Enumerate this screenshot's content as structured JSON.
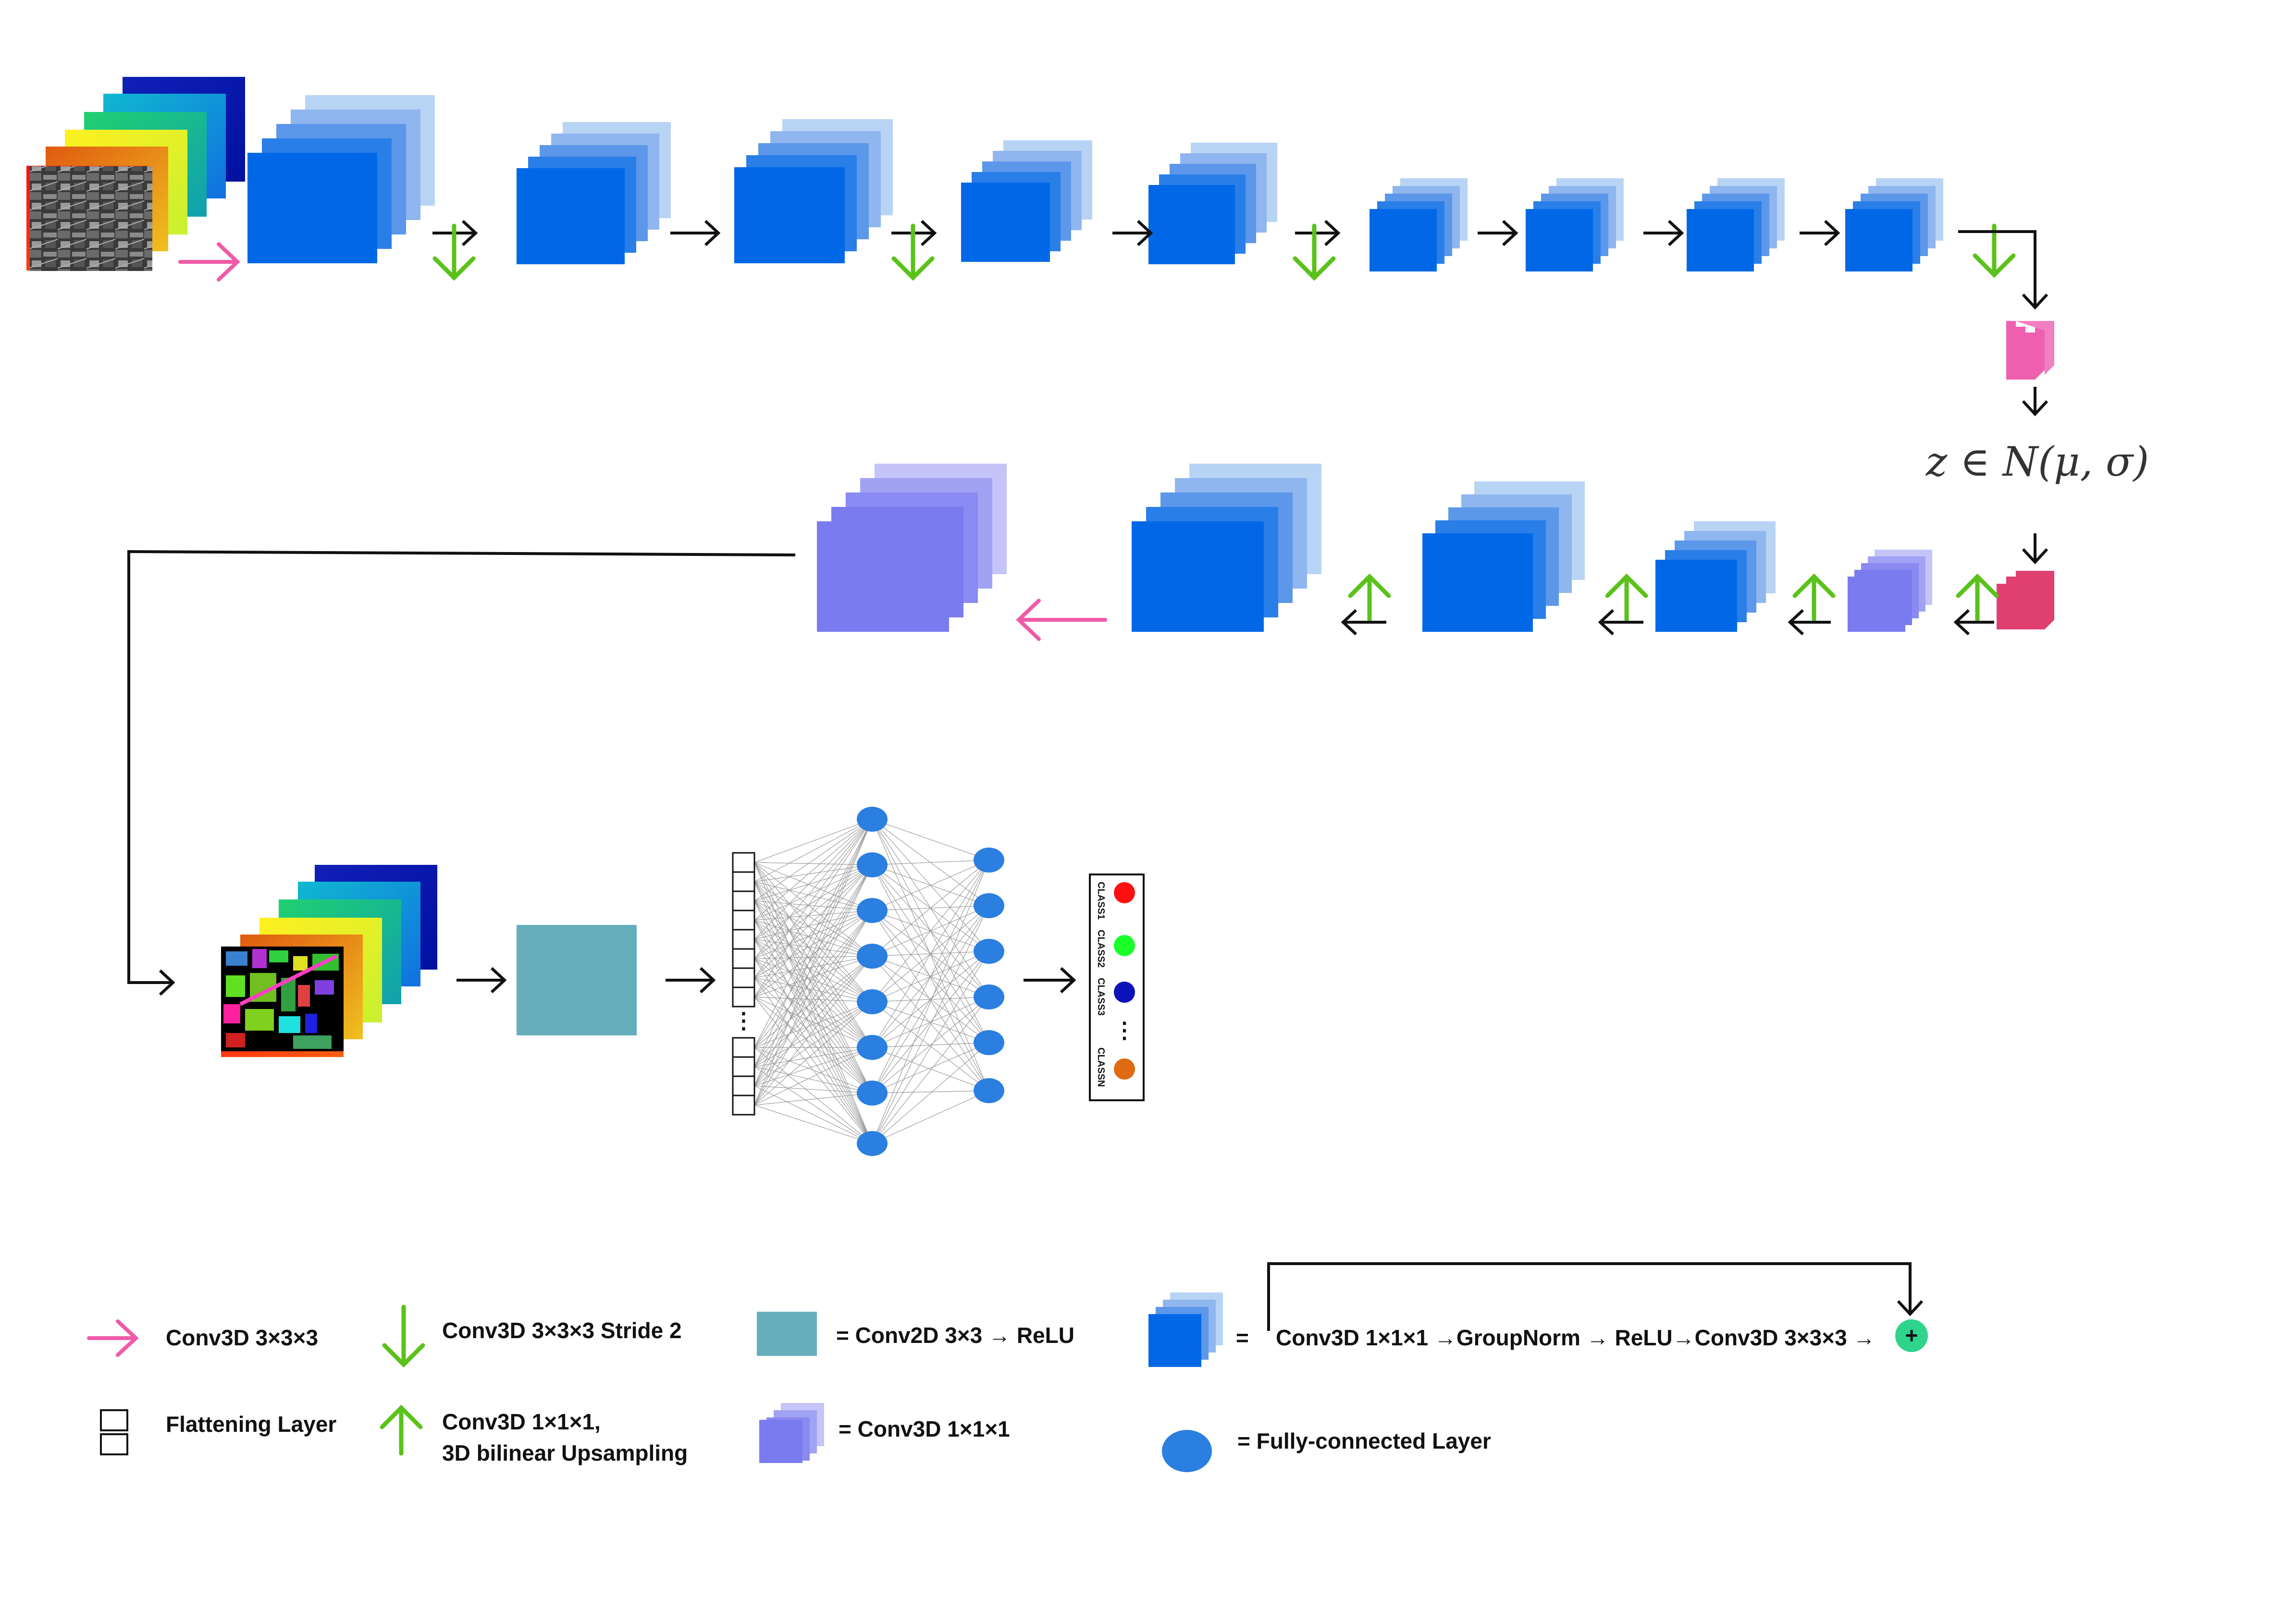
{
  "latent": {
    "equation": "z ∈ N(μ, σ)"
  },
  "classes": {
    "labels": [
      "CLASS1",
      "CLASS2",
      "CLASS3",
      "CLASSN"
    ],
    "colors": [
      "#ff1010",
      "#1aff2a",
      "#0a12b8",
      "#e06a12"
    ],
    "ellipsis": "⋮"
  },
  "legend": {
    "conv3d_pink": "Conv3D 3×3×3",
    "conv3d_stride": "Conv3D 3×3×3  Stride 2",
    "conv2d": "= Conv2D 3×3 → ReLU",
    "resblock_equals": "=",
    "resblock": "Conv3D 1×1×1 →GroupNorm → ReLU→Conv3D 3×3×3 →",
    "plus": "+",
    "flatten": "Flattening Layer",
    "upsample_line1": "Conv3D 1×1×1,",
    "upsample_line2": "3D bilinear Upsampling",
    "conv1x1": "= Conv3D 1×1×1",
    "fc": "= Fully-connected Layer"
  },
  "colors": {
    "block_blue": "#0068e6",
    "block_violet": "#7b7bf0",
    "pink_arrow": "#ef5aa8",
    "green_arrow": "#5ac21a",
    "conv2d_teal": "#67aebd",
    "fc_node": "#2a7fe0",
    "latent_pink": "#f060b0",
    "latent_red": "#df4070",
    "plus_green": "#2ed38c"
  }
}
